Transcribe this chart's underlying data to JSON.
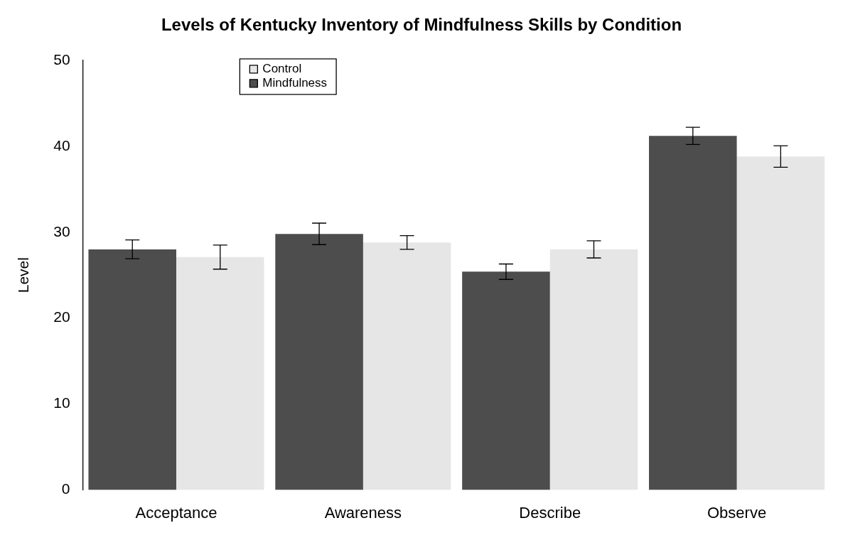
{
  "chart_data": {
    "type": "bar",
    "title": "Levels of Kentucky Inventory of Mindfulness Skills by Condition",
    "ylabel": "Level",
    "categories": [
      "Acceptance",
      "Awareness",
      "Describe",
      "Observe"
    ],
    "series": [
      {
        "name": "Mindfulness",
        "color": "#4d4d4d",
        "values": [
          28.0,
          29.8,
          25.4,
          41.2
        ],
        "errors": [
          1.1,
          1.25,
          0.9,
          1.0
        ]
      },
      {
        "name": "Control",
        "color": "#e6e6e6",
        "values": [
          27.1,
          28.8,
          28.0,
          38.8
        ],
        "errors": [
          1.4,
          0.8,
          1.0,
          1.25
        ]
      }
    ],
    "ylim": [
      0,
      50
    ],
    "yticks": [
      0,
      10,
      20,
      30,
      40,
      50
    ],
    "grid": false,
    "legend": "top left"
  }
}
